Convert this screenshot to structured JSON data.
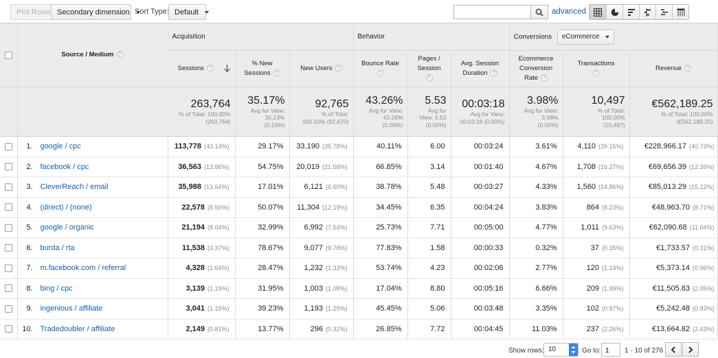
{
  "toolbar": {
    "plot_rows": "Plot Rows",
    "secondary_dimension": "Secondary dimension",
    "sort_type_label": "Sort Type:",
    "sort_type_value": "Default",
    "search_value": "",
    "advanced": "advanced"
  },
  "table": {
    "dimension_header": "Source / Medium",
    "groups": {
      "acquisition": "Acquisition",
      "behavior": "Behavior",
      "conversions": "Conversions",
      "conversions_select": "eCommerce"
    },
    "metric_headers": {
      "sessions": "Sessions",
      "pct_new_sessions_1": "% New",
      "pct_new_sessions_2": "Sessions",
      "new_users": "New Users",
      "bounce_rate": "Bounce Rate",
      "pages_session_1": "Pages /",
      "pages_session_2": "Session",
      "avg_duration_1": "Avg. Session",
      "avg_duration_2": "Duration",
      "ecom_rate_1": "Ecommerce",
      "ecom_rate_2": "Conversion",
      "ecom_rate_3": "Rate",
      "transactions": "Transactions",
      "revenue": "Revenue"
    },
    "totals": {
      "sessions": {
        "value": "263,764",
        "sub1": "% of Total: 100.00%",
        "sub2": "(263,764)"
      },
      "pct_new_sessions": {
        "value": "35.17%",
        "sub1": "Avg for View:",
        "sub2": "35.13%",
        "sub3": "(0.10%)"
      },
      "new_users": {
        "value": "92,765",
        "sub1": "% of Total:",
        "sub2": "100.10% (92,670)"
      },
      "bounce_rate": {
        "value": "43.26%",
        "sub1": "Avg for View:",
        "sub2": "43.26%",
        "sub3": "(0.00%)"
      },
      "pages_session": {
        "value": "5.53",
        "sub1": "Avg for",
        "sub2": "View: 5.53",
        "sub3": "(0.00%)"
      },
      "avg_duration": {
        "value": "00:03:18",
        "sub1": "Avg for View:",
        "sub2": "00:03:18 (0.00%)"
      },
      "ecom_rate": {
        "value": "3.98%",
        "sub1": "Avg for View:",
        "sub2": "3.98%",
        "sub3": "(0.00%)"
      },
      "transactions": {
        "value": "10,497",
        "sub1": "% of Total:",
        "sub2": "100.00%",
        "sub3": "(10,497)"
      },
      "revenue": {
        "value": "€562,189.25",
        "sub1": "% of Total: 100.00%",
        "sub2": "(€562,189.25)"
      }
    },
    "rows": [
      {
        "idx": "1.",
        "source": "google / cpc",
        "sessions": "113,778",
        "sessions_pct": "(43.14%)",
        "pct_new": "29.17%",
        "new_users": "33,190",
        "new_users_pct": "(35.78%)",
        "bounce": "40.11%",
        "pages": "6.00",
        "duration": "00:03:24",
        "ecom_rate": "3.61%",
        "trans": "4,110",
        "trans_pct": "(39.15%)",
        "revenue": "€228,966.17",
        "revenue_pct": "(40.73%)"
      },
      {
        "idx": "2.",
        "source": "facebook / cpc",
        "sessions": "36,563",
        "sessions_pct": "(13.86%)",
        "pct_new": "54.75%",
        "new_users": "20,019",
        "new_users_pct": "(21.58%)",
        "bounce": "66.85%",
        "pages": "3.14",
        "duration": "00:01:40",
        "ecom_rate": "4.67%",
        "trans": "1,708",
        "trans_pct": "(16.27%)",
        "revenue": "€69,656.39",
        "revenue_pct": "(12.39%)"
      },
      {
        "idx": "3.",
        "source": "CleverReach / email",
        "sessions": "35,988",
        "sessions_pct": "(13.64%)",
        "pct_new": "17.01%",
        "new_users": "6,121",
        "new_users_pct": "(6.60%)",
        "bounce": "38.78%",
        "pages": "5.48",
        "duration": "00:03:27",
        "ecom_rate": "4.33%",
        "trans": "1,560",
        "trans_pct": "(14.86%)",
        "revenue": "€85,013.29",
        "revenue_pct": "(15.12%)"
      },
      {
        "idx": "4.",
        "source": "(direct) / (none)",
        "sessions": "22,578",
        "sessions_pct": "(8.56%)",
        "pct_new": "50.07%",
        "new_users": "11,304",
        "new_users_pct": "(12.19%)",
        "bounce": "34.45%",
        "pages": "6.35",
        "duration": "00:04:24",
        "ecom_rate": "3.83%",
        "trans": "864",
        "trans_pct": "(8.23%)",
        "revenue": "€48,963.70",
        "revenue_pct": "(8.71%)"
      },
      {
        "idx": "5.",
        "source": "google / organic",
        "sessions": "21,194",
        "sessions_pct": "(8.04%)",
        "pct_new": "32.99%",
        "new_users": "6,992",
        "new_users_pct": "(7.54%)",
        "bounce": "25.73%",
        "pages": "7.71",
        "duration": "00:05:00",
        "ecom_rate": "4.77%",
        "trans": "1,011",
        "trans_pct": "(9.63%)",
        "revenue": "€62,090.68",
        "revenue_pct": "(11.04%)"
      },
      {
        "idx": "6.",
        "source": "burda / rta",
        "sessions": "11,538",
        "sessions_pct": "(4.37%)",
        "pct_new": "78.67%",
        "new_users": "9,077",
        "new_users_pct": "(9.78%)",
        "bounce": "77.83%",
        "pages": "1.58",
        "duration": "00:00:33",
        "ecom_rate": "0.32%",
        "trans": "37",
        "trans_pct": "(0.35%)",
        "revenue": "€1,733.57",
        "revenue_pct": "(0.31%)"
      },
      {
        "idx": "7.",
        "source": "m.facebook.com / referral",
        "sessions": "4,328",
        "sessions_pct": "(1.64%)",
        "pct_new": "28.47%",
        "new_users": "1,232",
        "new_users_pct": "(1.33%)",
        "bounce": "53.74%",
        "pages": "4.23",
        "duration": "00:02:06",
        "ecom_rate": "2.77%",
        "trans": "120",
        "trans_pct": "(1.14%)",
        "revenue": "€5,373.14",
        "revenue_pct": "(0.96%)"
      },
      {
        "idx": "8.",
        "source": "bing / cpc",
        "sessions": "3,139",
        "sessions_pct": "(1.19%)",
        "pct_new": "31.95%",
        "new_users": "1,003",
        "new_users_pct": "(1.08%)",
        "bounce": "17.04%",
        "pages": "8.80",
        "duration": "00:05:16",
        "ecom_rate": "6.66%",
        "trans": "209",
        "trans_pct": "(1.99%)",
        "revenue": "€11,505.83",
        "revenue_pct": "(2.05%)"
      },
      {
        "idx": "9.",
        "source": "ingenious / affiliate",
        "sessions": "3,041",
        "sessions_pct": "(1.15%)",
        "pct_new": "39.23%",
        "new_users": "1,193",
        "new_users_pct": "(1.29%)",
        "bounce": "45.45%",
        "pages": "5.06",
        "duration": "00:03:48",
        "ecom_rate": "3.35%",
        "trans": "102",
        "trans_pct": "(0.97%)",
        "revenue": "€5,242.48",
        "revenue_pct": "(0.93%)"
      },
      {
        "idx": "10.",
        "source": "Tradedoubler / affiliate",
        "sessions": "2,149",
        "sessions_pct": "(0.81%)",
        "pct_new": "13.77%",
        "new_users": "296",
        "new_users_pct": "(0.32%)",
        "bounce": "26.85%",
        "pages": "7.72",
        "duration": "00:04:45",
        "ecom_rate": "11.03%",
        "trans": "237",
        "trans_pct": "(2.26%)",
        "revenue": "€13,664.82",
        "revenue_pct": "(2.43%)"
      }
    ]
  },
  "pager": {
    "show_rows_label": "Show rows:",
    "show_rows_value": "10",
    "goto_label": "Go to:",
    "goto_value": "1",
    "range": "1 - 10 of 276"
  },
  "colors": {
    "link": "#1a5fa8",
    "header_bg": "#ececec",
    "accent_spinner": "#3a86e0"
  },
  "icons": [
    "search-icon",
    "table-view-icon",
    "pie-view-icon",
    "performance-view-icon",
    "comparison-view-icon",
    "term-cloud-icon",
    "pivot-view-icon",
    "help-icon",
    "sort-down-arrow-icon",
    "chevron-left-icon",
    "chevron-right-icon"
  ]
}
